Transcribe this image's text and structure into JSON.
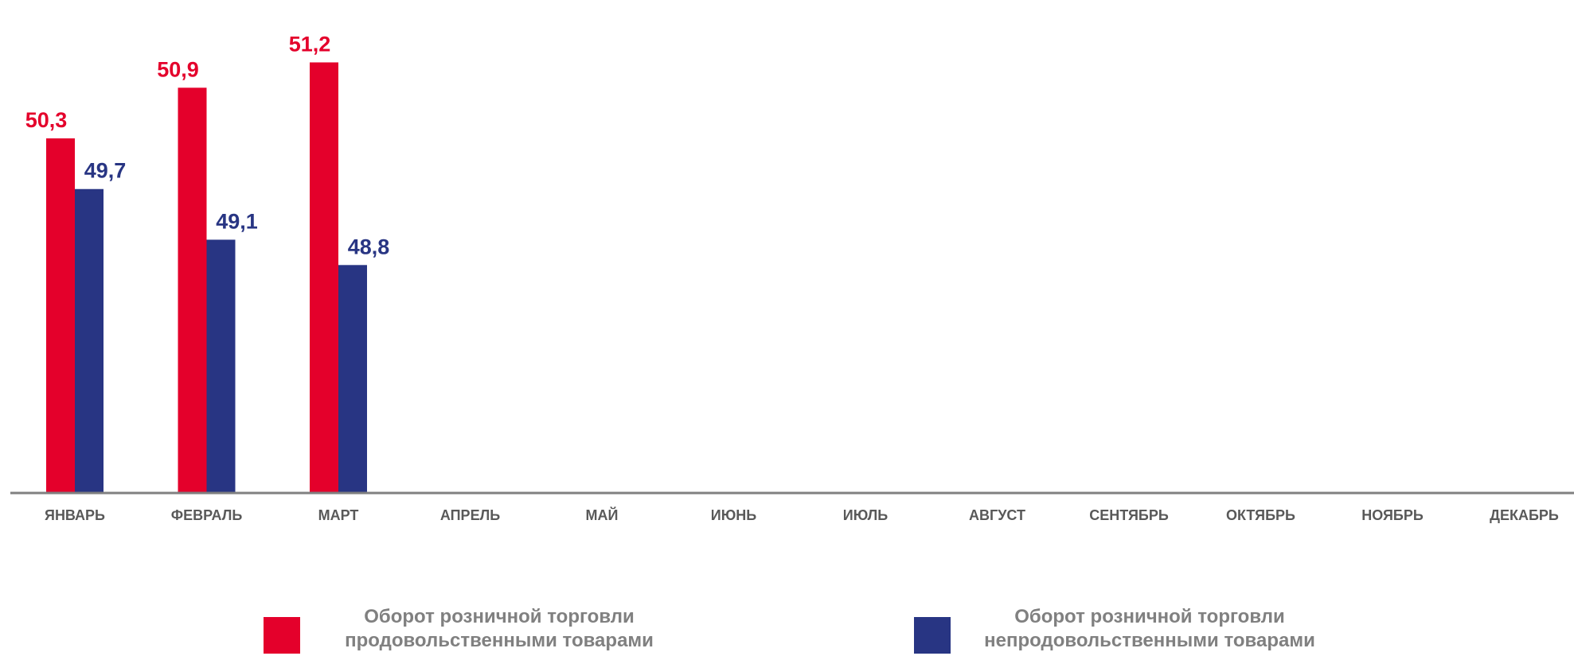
{
  "chart_data": {
    "type": "bar",
    "categories": [
      "ЯНВАРЬ",
      "ФЕВРАЛЬ",
      "МАРТ",
      "АПРЕЛЬ",
      "МАЙ",
      "ИЮНЬ",
      "ИЮЛЬ",
      "АВГУСТ",
      "СЕНТЯБРЬ",
      "ОКТЯБРЬ",
      "НОЯБРЬ",
      "ДЕКАБРЬ"
    ],
    "series": [
      {
        "name": "Оборот розничной торговли продовольственными товарами",
        "values": [
          50.3,
          50.9,
          51.2,
          null,
          null,
          null,
          null,
          null,
          null,
          null,
          null,
          null
        ],
        "labels": [
          "50,3",
          "50,9",
          "51,2"
        ],
        "color": "#e4002b"
      },
      {
        "name": "Оборот розничной торговли непродовольственными товарами",
        "values": [
          49.7,
          49.1,
          48.8,
          null,
          null,
          null,
          null,
          null,
          null,
          null,
          null,
          null
        ],
        "labels": [
          "49,7",
          "49,1",
          "48,8"
        ],
        "color": "#283583"
      }
    ],
    "title": "",
    "xlabel": "",
    "ylabel": "",
    "ylim": [
      46.1,
      51.6
    ],
    "grid": false,
    "legend_position": "bottom",
    "axis_color": "#808080"
  },
  "legend": {
    "food_line1": "Оборот розничной торговли",
    "food_line2": "продовольственными товарами",
    "nonfood_line1": "Оборот розничной торговли",
    "nonfood_line2": "непродовольственными товарами"
  }
}
